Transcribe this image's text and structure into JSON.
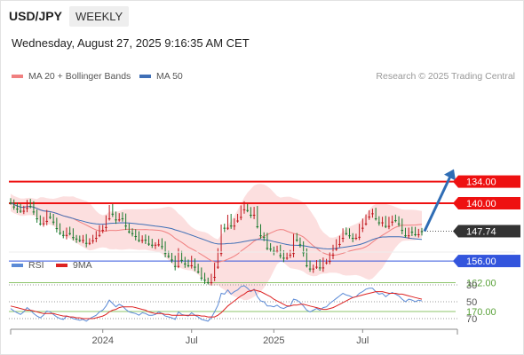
{
  "header": {
    "pair": "USD/JPY",
    "period": "WEEKLY",
    "datetime": "Wednesday, August 27, 2025 9:16:35 AM CET",
    "research": "Research © 2025 Trading Central"
  },
  "colors": {
    "candle_up": "#1a7a2e",
    "candle_down": "#c0171d",
    "ma20": "#f08080",
    "bollinger": "#fbd4d4",
    "ma50": "#3f6fb6",
    "support": "#ee1111",
    "resistance_line": "#3355dd",
    "green_level": "#8cc46a",
    "last_price_bg": "#333333",
    "arrow": "#2f6db5",
    "rsi": "#5b8ad6",
    "rsi_ma": "#dd2222"
  },
  "chart_data": [
    {
      "type": "candlestick",
      "title": "USD/JPY",
      "timeframe": "weekly",
      "ylim": [
        125,
        173
      ],
      "x_tick_labels": [
        "2024",
        "Jul",
        "2025",
        "Jul"
      ],
      "legend": [
        "MA 20 + Bollinger Bands",
        "MA 50"
      ],
      "last_price": 147.74,
      "levels": [
        {
          "value": 170.0,
          "label": "170.00",
          "kind": "resistance"
        },
        {
          "value": 162.0,
          "label": "162.00",
          "kind": "resistance"
        },
        {
          "value": 156.0,
          "label": "156.00",
          "kind": "pivot"
        },
        {
          "value": 140.0,
          "label": "140.00",
          "kind": "support"
        },
        {
          "value": 134.0,
          "label": "134.00",
          "kind": "support"
        }
      ],
      "last_price_label": "147.74",
      "forecast": {
        "from": 147.74,
        "to": 134.0,
        "direction": "down"
      },
      "close": [
        139.8,
        140.9,
        141.5,
        142.1,
        141.3,
        139.9,
        140.8,
        142.3,
        144.2,
        145.6,
        144.9,
        143.2,
        143.8,
        145.1,
        146.9,
        148.2,
        148.8,
        147.6,
        148.3,
        149.4,
        149.8,
        150.2,
        149.9,
        151.0,
        150.3,
        149.6,
        148.8,
        147.4,
        146.6,
        144.2,
        141.6,
        142.9,
        144.5,
        143.6,
        144.2,
        146.2,
        147.8,
        148.3,
        149.1,
        150.2,
        149.5,
        150.1,
        151.2,
        151.5,
        151.4,
        150.8,
        151.9,
        153.8,
        154.6,
        155.6,
        157.4,
        153.8,
        155.7,
        156.7,
        157.2,
        155.9,
        157.6,
        158.9,
        160.6,
        161.2,
        161.9,
        160.4,
        157.6,
        153.8,
        146.5,
        146.8,
        144.3,
        146.2,
        144.8,
        143.8,
        141.7,
        140.8,
        141.9,
        143.2,
        142.1,
        146.4,
        148.9,
        149.3,
        152.4,
        152.6,
        153.2,
        152.6,
        154.4,
        155.1,
        154.3,
        153.8,
        149.6,
        150.1,
        151.4,
        153.6,
        157.2,
        158.1,
        157.6,
        156.6,
        157.8,
        156.4,
        156.0,
        154.3,
        152.6,
        151.3,
        149.6,
        147.8,
        148.3,
        148.9,
        149.6,
        149.3,
        146.8,
        145.6,
        143.7,
        142.8,
        142.6,
        144.2,
        145.3,
        144.6,
        146.3,
        145.1,
        144.0,
        144.7,
        145.6,
        147.4,
        148.9,
        147.6,
        147.9,
        148.6,
        147.7,
        147.74
      ],
      "rsi_ylim": [
        20,
        80
      ],
      "rsi_tick_labels": [
        "70",
        "50",
        "30"
      ],
      "rsi_legend": [
        "RSI",
        "9MA"
      ],
      "rsi": [
        58,
        61,
        63,
        65,
        62,
        57,
        60,
        64,
        67,
        69,
        66,
        61,
        62,
        65,
        68,
        70,
        71,
        67,
        68,
        70,
        71,
        72,
        71,
        73,
        70,
        68,
        66,
        62,
        60,
        55,
        48,
        52,
        56,
        53,
        55,
        59,
        62,
        63,
        64,
        66,
        63,
        64,
        66,
        66,
        65,
        62,
        64,
        67,
        68,
        69,
        71,
        62,
        65,
        66,
        67,
        63,
        66,
        68,
        71,
        72,
        73,
        69,
        62,
        54,
        40,
        41,
        36,
        41,
        38,
        36,
        32,
        31,
        34,
        38,
        35,
        44,
        49,
        50,
        55,
        55,
        56,
        54,
        57,
        58,
        56,
        55,
        47,
        48,
        51,
        55,
        60,
        62,
        60,
        58,
        60,
        57,
        56,
        52,
        49,
        46,
        43,
        40,
        42,
        43,
        45,
        44,
        40,
        38,
        35,
        34,
        34,
        38,
        41,
        40,
        44,
        41,
        39,
        41,
        43,
        47,
        50,
        47,
        48,
        50,
        48,
        49
      ],
      "rsi_ma": [
        55,
        56,
        57,
        58,
        59,
        60,
        60,
        61,
        62,
        63,
        64,
        64,
        64,
        64,
        65,
        66,
        67,
        67,
        68,
        68,
        69,
        69,
        70,
        70,
        70,
        70,
        69,
        68,
        67,
        65,
        62,
        60,
        59,
        57,
        56,
        56,
        56,
        56,
        57,
        58,
        59,
        60,
        62,
        63,
        64,
        64,
        64,
        65,
        65,
        66,
        66,
        66,
        66,
        66,
        66,
        66,
        66,
        66,
        67,
        67,
        68,
        68,
        68,
        66,
        63,
        59,
        55,
        52,
        49,
        46,
        43,
        41,
        38,
        37,
        36,
        37,
        38,
        40,
        42,
        44,
        47,
        49,
        51,
        53,
        55,
        55,
        54,
        54,
        53,
        53,
        54,
        55,
        56,
        57,
        58,
        59,
        59,
        58,
        57,
        55,
        53,
        51,
        49,
        47,
        45,
        44,
        43,
        42,
        41,
        40,
        39,
        38,
        38,
        38,
        39,
        40,
        40,
        40,
        41,
        41,
        42,
        43,
        44,
        45,
        46,
        47
      ]
    }
  ]
}
